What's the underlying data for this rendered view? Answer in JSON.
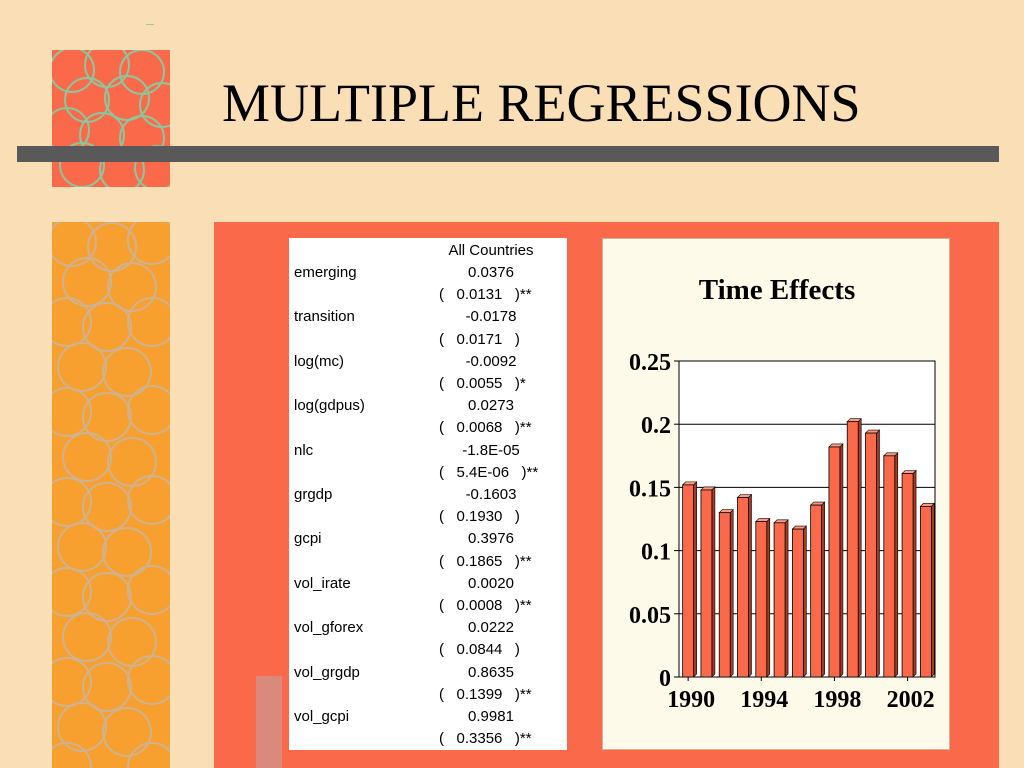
{
  "slide": {
    "title": "MULTIPLE REGRESSIONS"
  },
  "table": {
    "header": "All Countries",
    "rows": [
      {
        "label": "emerging",
        "coef": "0.0376",
        "se": "0.0131",
        "sig": "**"
      },
      {
        "label": "transition",
        "coef": "-0.0178",
        "se": "0.0171",
        "sig": ""
      },
      {
        "label": "log(mc)",
        "coef": "-0.0092",
        "se": "0.0055",
        "sig": "*"
      },
      {
        "label": "log(gdpus)",
        "coef": "0.0273",
        "se": "0.0068",
        "sig": "**"
      },
      {
        "label": "nlc",
        "coef": "-1.8E-05",
        "se": "5.4E-06",
        "sig": "**"
      },
      {
        "label": "grgdp",
        "coef": "-0.1603",
        "se": "0.1930",
        "sig": ""
      },
      {
        "label": "gcpi",
        "coef": "0.3976",
        "se": "0.1865",
        "sig": "**"
      },
      {
        "label": "vol_irate",
        "coef": "0.0020",
        "se": "0.0008",
        "sig": "**"
      },
      {
        "label": "vol_gforex",
        "coef": "0.0222",
        "se": "0.0844",
        "sig": ""
      },
      {
        "label": "vol_grgdp",
        "coef": "0.8635",
        "se": "0.1399",
        "sig": "**"
      },
      {
        "label": "vol_gcpi",
        "coef": "0.9981",
        "se": "0.3356",
        "sig": "**"
      }
    ]
  },
  "chart_data": {
    "type": "bar",
    "title": "Time Effects",
    "xlabel": "",
    "ylabel": "",
    "categories": [
      "1990",
      "1991",
      "1992",
      "1993",
      "1994",
      "1995",
      "1996",
      "1997",
      "1998",
      "1999",
      "2000",
      "2001",
      "2002",
      "2003"
    ],
    "values": [
      0.152,
      0.148,
      0.13,
      0.142,
      0.123,
      0.122,
      0.117,
      0.136,
      0.182,
      0.202,
      0.193,
      0.175,
      0.161,
      0.135
    ],
    "xtick_labels": [
      "1990",
      "1994",
      "1998",
      "2002"
    ],
    "ylim": [
      0,
      0.25
    ],
    "ytick_labels": [
      "0",
      "0.05",
      "0.1",
      "0.15",
      "0.2",
      "0.25"
    ],
    "grid": true,
    "bar_color": "#fa6a4a"
  }
}
